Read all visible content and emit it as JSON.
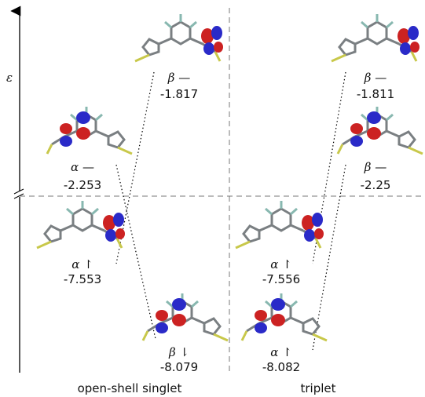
{
  "axis_label": "ε",
  "levels": [
    {
      "label": "α —",
      "energy": -2.253
    },
    {
      "label": "α ↾",
      "energy": -7.553
    },
    {
      "label": "β —",
      "energy": -1.817
    },
    {
      "label": "β ⇂",
      "energy": -8.079
    },
    {
      "label": "β —",
      "energy": -1.811
    },
    {
      "label": "β —",
      "energy": -2.25
    },
    {
      "label": "α ↾",
      "energy": -7.556
    },
    {
      "label": "α ↾",
      "energy": -8.082
    }
  ],
  "groups": [
    "open-shell singlet",
    "triplet"
  ]
}
